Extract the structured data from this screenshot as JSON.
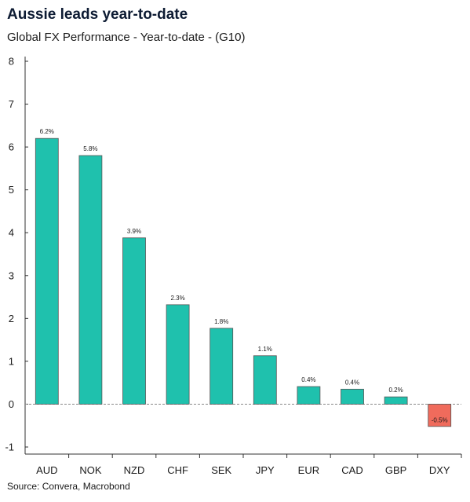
{
  "title": "Aussie leads year-to-date",
  "subtitle": "Global FX Performance - Year-to-date - (G10)",
  "source": "Source: Convera, Macrobond",
  "colors": {
    "positive": "#1fc1ad",
    "negative": "#f06b5c",
    "axis": "#333333",
    "zero_line": "#888888"
  },
  "chart_data": {
    "type": "bar",
    "title": "Aussie leads year-to-date",
    "subtitle": "Global FX Performance - Year-to-date - (G10)",
    "categories": [
      "AUD",
      "NOK",
      "NZD",
      "CHF",
      "SEK",
      "JPY",
      "EUR",
      "CAD",
      "GBP",
      "DXY"
    ],
    "values": [
      6.2,
      5.8,
      3.88,
      2.32,
      1.77,
      1.13,
      0.41,
      0.35,
      0.17,
      -0.52
    ],
    "data_labels": [
      "6.2%",
      "5.8%",
      "3.9%",
      "2.3%",
      "1.8%",
      "1.1%",
      "0.4%",
      "0.4%",
      "0.2%",
      "-0.5%"
    ],
    "ylim": [
      -1,
      8
    ],
    "yticks": [
      "-1",
      "0",
      "1",
      "2",
      "3",
      "4",
      "5",
      "6",
      "7",
      "8"
    ],
    "grid": false,
    "xlabel": "",
    "ylabel": ""
  }
}
